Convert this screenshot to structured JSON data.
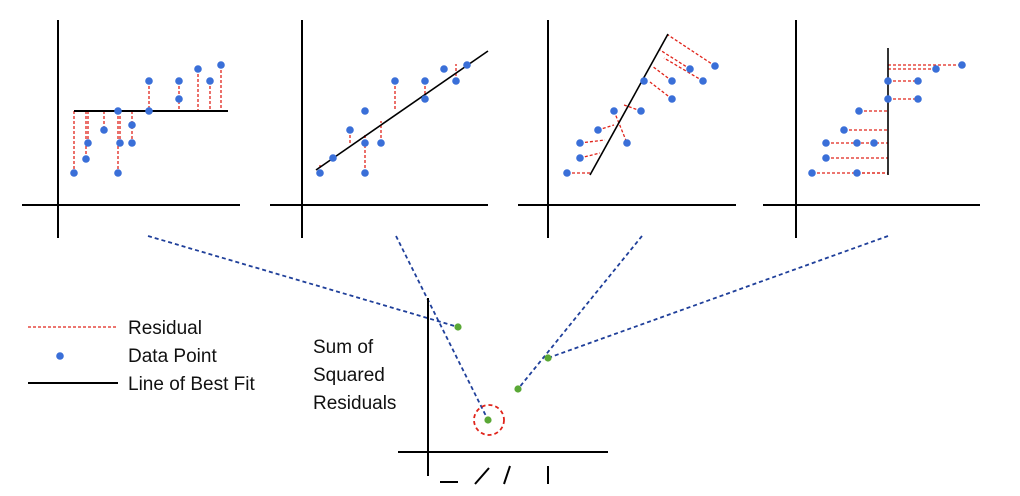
{
  "colors": {
    "residual": "#e0241b",
    "data_point": "#3a6fd8",
    "fit_line": "#000000",
    "connector": "#1f3f9a",
    "sse_point": "#5aa836",
    "highlight_circle": "#e0241b"
  },
  "legend": [
    {
      "key": "residual",
      "label": "Residual"
    },
    {
      "key": "data_point",
      "label": "Data Point"
    },
    {
      "key": "fit_line",
      "label": "Line of Best Fit"
    }
  ],
  "y_axis_label": [
    "Sum of",
    "Squared",
    "Residuals"
  ]
}
